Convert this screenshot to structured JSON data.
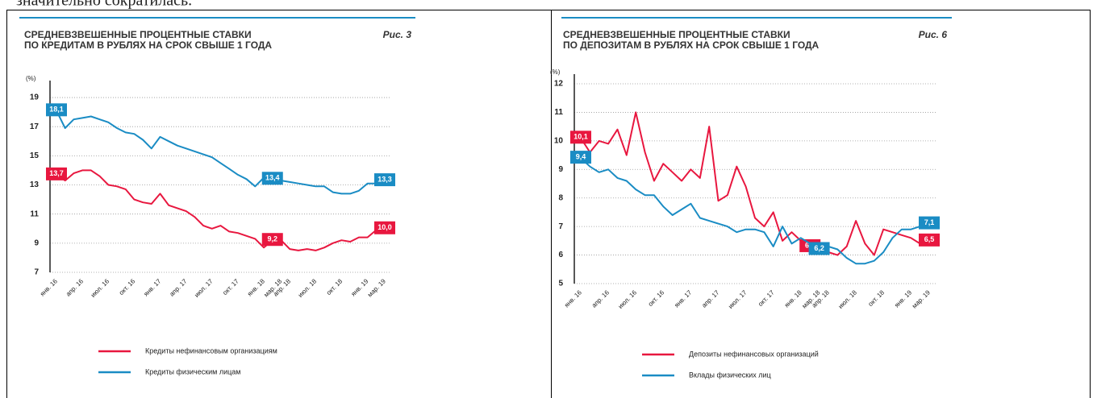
{
  "page_text": "значительно сократилась.",
  "chart_data": [
    {
      "type": "line",
      "title": [
        "СРЕДНЕВЗВЕШЕННЫЕ ПРОЦЕНТНЫЕ СТАВКИ",
        "ПО КРЕДИТАМ В РУБЛЯХ НА СРОК СВЫШЕ 1 ГОДА"
      ],
      "figure_label": "Рис. 3",
      "y_label": "(%)",
      "categories": [
        "янв. 16",
        null,
        null,
        "апр. 16",
        null,
        null,
        "июл. 16",
        null,
        null,
        "окт. 16",
        null,
        null,
        "янв. 17",
        null,
        null,
        "апр. 17",
        null,
        null,
        "июл. 17",
        null,
        null,
        "окт. 17",
        null,
        null,
        "янв. 18",
        null,
        "мар. 18",
        "апр. 18",
        null,
        null,
        "июл. 18",
        null,
        null,
        "окт. 18",
        null,
        null,
        "янв. 19",
        null,
        "мар. 19"
      ],
      "ylim": [
        7,
        19.5
      ],
      "yticks": [
        7,
        9,
        11,
        13,
        15,
        17,
        19
      ],
      "grid": true,
      "series": [
        {
          "name": "Кредиты нефинансовым организациям",
          "color": "#e8173f",
          "values": [
            13.7,
            13.3,
            13.8,
            14.0,
            14.0,
            13.6,
            13.0,
            12.9,
            12.7,
            12.0,
            11.8,
            11.7,
            12.4,
            11.6,
            11.4,
            11.2,
            10.8,
            10.2,
            10.0,
            10.2,
            9.8,
            9.7,
            9.5,
            9.3,
            8.7,
            9.2,
            9.2,
            8.6,
            8.5,
            8.6,
            8.5,
            8.7,
            9.0,
            9.2,
            9.1,
            9.4,
            9.4,
            9.9,
            10.0
          ],
          "value_labels": [
            "13,7",
            null,
            null,
            null,
            null,
            null,
            null,
            null,
            null,
            null,
            null,
            null,
            null,
            null,
            null,
            null,
            null,
            null,
            null,
            null,
            null,
            null,
            null,
            null,
            null,
            "9,2",
            null,
            null,
            null,
            null,
            null,
            null,
            null,
            null,
            null,
            null,
            null,
            null,
            "10,0"
          ]
        },
        {
          "name": "Кредиты физическим лицам",
          "color": "#1a8cc4",
          "values": [
            18.1,
            16.9,
            17.5,
            17.6,
            17.7,
            17.5,
            17.3,
            16.9,
            16.6,
            16.5,
            16.1,
            15.5,
            16.3,
            16.0,
            15.7,
            15.5,
            15.3,
            15.1,
            14.9,
            14.5,
            14.1,
            13.7,
            13.4,
            12.9,
            13.5,
            13.4,
            13.3,
            13.2,
            13.1,
            13.0,
            12.9,
            12.9,
            12.5,
            12.4,
            12.4,
            12.6,
            13.1,
            13.1,
            13.3
          ],
          "value_labels": [
            "18,1",
            null,
            null,
            null,
            null,
            null,
            null,
            null,
            null,
            null,
            null,
            null,
            null,
            null,
            null,
            null,
            null,
            null,
            null,
            null,
            null,
            null,
            null,
            null,
            null,
            "13,4",
            null,
            null,
            null,
            null,
            null,
            null,
            null,
            null,
            null,
            null,
            null,
            null,
            "13,3"
          ]
        }
      ]
    },
    {
      "type": "line",
      "title": [
        "СРЕДНЕВЗВЕШЕННЫЕ ПРОЦЕНТНЫЕ СТАВКИ",
        "ПО ДЕПОЗИТАМ В РУБЛЯХ НА СРОК СВЫШЕ 1 ГОДА"
      ],
      "figure_label": "Рис. 6",
      "y_label": "(%)",
      "categories": [
        "янв. 16",
        null,
        null,
        "апр. 16",
        null,
        null,
        "июл. 16",
        null,
        null,
        "окт. 16",
        null,
        null,
        "янв. 17",
        null,
        null,
        "апр. 17",
        null,
        null,
        "июл. 17",
        null,
        null,
        "окт. 17",
        null,
        null,
        "янв. 18",
        null,
        "мар. 18",
        "апр. 18",
        null,
        null,
        "июл. 18",
        null,
        null,
        "окт. 18",
        null,
        null,
        "янв. 19",
        null,
        "мар. 19"
      ],
      "ylim": [
        5,
        12
      ],
      "yticks": [
        5,
        6,
        7,
        8,
        9,
        10,
        11,
        12
      ],
      "grid": true,
      "series": [
        {
          "name": "Депозиты нефинансовых организаций",
          "color": "#e8173f",
          "values": [
            10.1,
            9.6,
            10.0,
            9.9,
            10.4,
            9.5,
            11.0,
            9.6,
            8.6,
            9.2,
            8.9,
            8.6,
            9.0,
            8.7,
            10.5,
            7.9,
            8.1,
            9.1,
            8.4,
            7.3,
            7.0,
            7.5,
            6.5,
            6.8,
            6.5,
            6.3,
            6.3,
            6.1,
            6.0,
            6.3,
            7.2,
            6.4,
            6.0,
            6.9,
            6.8,
            6.7,
            6.6,
            6.4,
            6.5
          ],
          "value_labels": [
            "10,1",
            null,
            null,
            null,
            null,
            null,
            null,
            null,
            null,
            null,
            null,
            null,
            null,
            null,
            null,
            null,
            null,
            null,
            null,
            null,
            null,
            null,
            null,
            null,
            null,
            "6,3",
            null,
            null,
            null,
            null,
            null,
            null,
            null,
            null,
            null,
            null,
            null,
            null,
            "6,5"
          ]
        },
        {
          "name": "Вклады физических лиц",
          "color": "#1a8cc4",
          "values": [
            9.4,
            9.1,
            8.9,
            9.0,
            8.7,
            8.6,
            8.3,
            8.1,
            8.1,
            7.7,
            7.4,
            7.6,
            7.8,
            7.3,
            7.2,
            7.1,
            7.0,
            6.8,
            6.9,
            6.9,
            6.8,
            6.3,
            7.0,
            6.4,
            6.6,
            6.4,
            6.2,
            6.3,
            6.2,
            5.9,
            5.7,
            5.7,
            5.8,
            6.1,
            6.6,
            6.9,
            6.9,
            7.0,
            7.1
          ],
          "value_labels": [
            "9,4",
            null,
            null,
            null,
            null,
            null,
            null,
            null,
            null,
            null,
            null,
            null,
            null,
            null,
            null,
            null,
            null,
            null,
            null,
            null,
            null,
            null,
            null,
            null,
            null,
            null,
            "6,2",
            null,
            null,
            null,
            null,
            null,
            null,
            null,
            null,
            null,
            null,
            null,
            "7,1"
          ]
        }
      ]
    }
  ]
}
